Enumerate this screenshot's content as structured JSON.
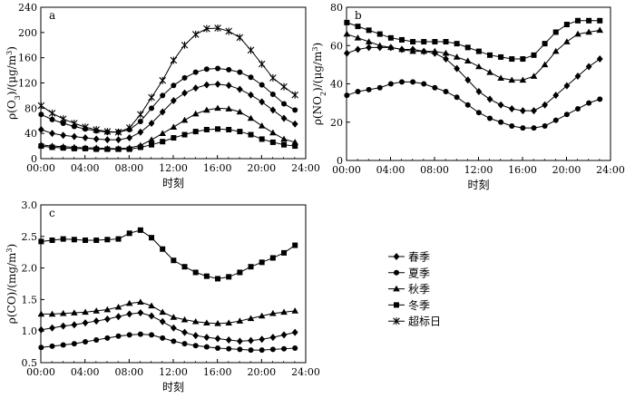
{
  "chart_data": [
    {
      "panel_label": "a",
      "type": "line",
      "xlabel": "时刻",
      "ylabel": "ρ(O3)/(μg/m3)",
      "x_ticks": [
        "00:00",
        "04:00",
        "08:00",
        "12:00",
        "16:00",
        "20:00",
        "24:00"
      ],
      "y_ticks": [
        "0",
        "40",
        "80",
        "120",
        "160",
        "200",
        "240"
      ],
      "xlim": [
        0,
        24
      ],
      "ylim": [
        0,
        240
      ],
      "x": [
        0,
        1,
        2,
        3,
        4,
        5,
        6,
        7,
        8,
        9,
        10,
        11,
        12,
        13,
        14,
        15,
        16,
        17,
        18,
        19,
        20,
        21,
        22,
        23
      ],
      "series": [
        {
          "name": "春季",
          "marker": "diamond",
          "values": [
            46,
            40,
            37,
            35,
            33,
            31,
            30,
            30,
            33,
            42,
            56,
            74,
            92,
            104,
            112,
            117,
            118,
            116,
            110,
            101,
            90,
            77,
            64,
            55
          ]
        },
        {
          "name": "夏季",
          "marker": "circle",
          "values": [
            70,
            62,
            56,
            51,
            47,
            44,
            42,
            42,
            46,
            59,
            80,
            100,
            116,
            128,
            137,
            142,
            143,
            141,
            137,
            129,
            117,
            102,
            87,
            77
          ]
        },
        {
          "name": "秋季",
          "marker": "triangle",
          "values": [
            22,
            20,
            19,
            18,
            17,
            17,
            16,
            16,
            17,
            21,
            30,
            40,
            50,
            61,
            71,
            77,
            80,
            79,
            74,
            64,
            52,
            41,
            31,
            26
          ]
        },
        {
          "name": "冬季",
          "marker": "square",
          "values": [
            20,
            18,
            17,
            16,
            16,
            15,
            15,
            15,
            15,
            18,
            22,
            27,
            33,
            38,
            43,
            46,
            47,
            46,
            43,
            38,
            31,
            26,
            22,
            20
          ]
        },
        {
          "name": "超标日",
          "marker": "asterisk",
          "values": [
            84,
            72,
            63,
            56,
            50,
            46,
            43,
            42,
            49,
            70,
            97,
            124,
            156,
            180,
            197,
            206,
            207,
            202,
            192,
            172,
            150,
            128,
            114,
            101
          ]
        }
      ]
    },
    {
      "panel_label": "b",
      "type": "line",
      "xlabel": "时刻",
      "ylabel": "ρ(NO2)/(μg/m3)",
      "x_ticks": [
        "00:00",
        "04:00",
        "08:00",
        "12:00",
        "16:00",
        "20:00",
        "24:00"
      ],
      "y_ticks": [
        "0",
        "20",
        "40",
        "60",
        "80"
      ],
      "xlim": [
        0,
        24
      ],
      "ylim": [
        0,
        80
      ],
      "x": [
        0,
        1,
        2,
        3,
        4,
        5,
        6,
        7,
        8,
        9,
        10,
        11,
        12,
        13,
        14,
        15,
        16,
        17,
        18,
        19,
        20,
        21,
        22,
        23
      ],
      "series": [
        {
          "name": "春季",
          "marker": "diamond",
          "values": [
            56,
            58,
            59,
            59,
            59,
            58,
            58,
            57,
            56,
            53,
            48,
            42,
            36,
            32,
            29,
            27,
            26,
            26,
            29,
            34,
            39,
            44,
            49,
            53
          ]
        },
        {
          "name": "夏季",
          "marker": "circle",
          "values": [
            34,
            36,
            37,
            38,
            40,
            41,
            41,
            40,
            38,
            36,
            33,
            29,
            25,
            22,
            20,
            18,
            17,
            17,
            18,
            21,
            24,
            27,
            30,
            32
          ]
        },
        {
          "name": "秋季",
          "marker": "triangle",
          "values": [
            66,
            64,
            62,
            60,
            59,
            58,
            57,
            57,
            57,
            56,
            54,
            52,
            49,
            46,
            43,
            42,
            42,
            44,
            50,
            57,
            62,
            66,
            67,
            68
          ]
        },
        {
          "name": "冬季",
          "marker": "square",
          "values": [
            72,
            70,
            68,
            66,
            64,
            63,
            62,
            62,
            62,
            62,
            61,
            59,
            57,
            55,
            54,
            53,
            53,
            55,
            61,
            67,
            71,
            73,
            73,
            73
          ]
        }
      ]
    },
    {
      "panel_label": "c",
      "type": "line",
      "xlabel": "时刻",
      "ylabel": "ρ(CO)/(mg/m3)",
      "x_ticks": [
        "00:00",
        "04:00",
        "08:00",
        "12:00",
        "16:00",
        "20:00",
        "24:00"
      ],
      "y_ticks": [
        "0.5",
        "1.0",
        "1.5",
        "2.0",
        "2.5",
        "3.0"
      ],
      "xlim": [
        0,
        24
      ],
      "ylim": [
        0.5,
        3.0
      ],
      "x": [
        0,
        1,
        2,
        3,
        4,
        5,
        6,
        7,
        8,
        9,
        10,
        11,
        12,
        13,
        14,
        15,
        16,
        17,
        18,
        19,
        20,
        21,
        22,
        23
      ],
      "series": [
        {
          "name": "春季",
          "marker": "diamond",
          "values": [
            1.02,
            1.05,
            1.08,
            1.1,
            1.13,
            1.16,
            1.19,
            1.23,
            1.27,
            1.29,
            1.24,
            1.15,
            1.05,
            0.98,
            0.93,
            0.9,
            0.88,
            0.86,
            0.84,
            0.85,
            0.87,
            0.9,
            0.94,
            0.98
          ]
        },
        {
          "name": "夏季",
          "marker": "circle",
          "values": [
            0.74,
            0.76,
            0.78,
            0.8,
            0.83,
            0.86,
            0.89,
            0.92,
            0.94,
            0.95,
            0.94,
            0.89,
            0.84,
            0.8,
            0.77,
            0.75,
            0.73,
            0.72,
            0.71,
            0.7,
            0.7,
            0.71,
            0.72,
            0.73
          ]
        },
        {
          "name": "秋季",
          "marker": "triangle",
          "values": [
            1.27,
            1.27,
            1.28,
            1.29,
            1.3,
            1.32,
            1.34,
            1.38,
            1.44,
            1.46,
            1.4,
            1.3,
            1.22,
            1.18,
            1.15,
            1.13,
            1.12,
            1.13,
            1.16,
            1.2,
            1.24,
            1.28,
            1.3,
            1.32
          ]
        },
        {
          "name": "冬季",
          "marker": "square",
          "values": [
            2.42,
            2.44,
            2.46,
            2.45,
            2.44,
            2.44,
            2.45,
            2.46,
            2.55,
            2.6,
            2.48,
            2.3,
            2.12,
            2.02,
            1.93,
            1.87,
            1.83,
            1.86,
            1.93,
            2.02,
            2.09,
            2.16,
            2.24,
            2.36
          ]
        }
      ]
    }
  ],
  "legend": {
    "placement": "right of panel c",
    "items": [
      {
        "name": "春季",
        "marker": "diamond"
      },
      {
        "name": "夏季",
        "marker": "circle"
      },
      {
        "name": "秋季",
        "marker": "triangle"
      },
      {
        "name": "冬季",
        "marker": "square"
      },
      {
        "name": "超标日",
        "marker": "asterisk"
      }
    ]
  }
}
